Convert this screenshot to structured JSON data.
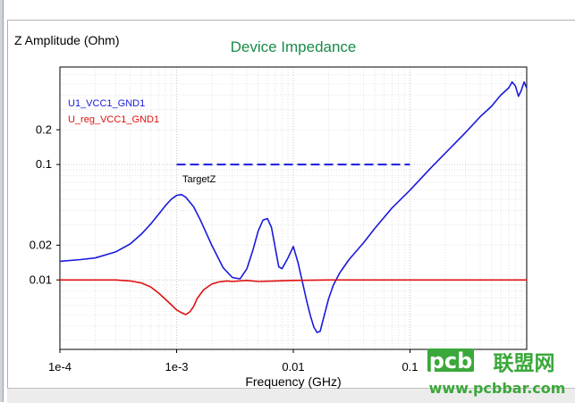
{
  "chart_data": {
    "type": "line",
    "title": "Device Impedance",
    "xlabel": "Frequency (GHz)",
    "ylabel": "Z Amplitude (Ohm)",
    "x_scale": "log",
    "y_scale": "log",
    "xlim": [
      0.0001,
      1
    ],
    "ylim": [
      0.0025,
      0.7
    ],
    "x_ticks": [
      {
        "value": 0.0001,
        "label": "1e-4"
      },
      {
        "value": 0.001,
        "label": "1e-3"
      },
      {
        "value": 0.01,
        "label": "0.01"
      },
      {
        "value": 0.1,
        "label": "0.1"
      }
    ],
    "y_ticks": [
      {
        "value": 0.2,
        "label": "0.2"
      },
      {
        "value": 0.1,
        "label": "0.1"
      },
      {
        "value": 0.02,
        "label": "0.02"
      },
      {
        "value": 0.01,
        "label": "0.01"
      }
    ],
    "grid": true,
    "legend_position": "top-left",
    "series": [
      {
        "name": "U1_VCC1_GND1",
        "color": "#1a1adc",
        "style": "solid",
        "x": [
          0.0001,
          0.00015,
          0.0002,
          0.0003,
          0.0004,
          0.0005,
          0.0006,
          0.0007,
          0.0008,
          0.0009,
          0.001,
          0.0011,
          0.0012,
          0.0014,
          0.0016,
          0.002,
          0.0025,
          0.003,
          0.0035,
          0.004,
          0.0045,
          0.005,
          0.0055,
          0.006,
          0.0065,
          0.007,
          0.0075,
          0.008,
          0.009,
          0.01,
          0.011,
          0.012,
          0.013,
          0.014,
          0.015,
          0.016,
          0.017,
          0.018,
          0.02,
          0.022,
          0.025,
          0.03,
          0.04,
          0.05,
          0.07,
          0.1,
          0.15,
          0.2,
          0.3,
          0.4,
          0.5,
          0.6,
          0.7,
          0.75,
          0.8,
          0.85,
          0.9,
          0.95,
          1.0
        ],
        "y": [
          0.0145,
          0.015,
          0.0155,
          0.0175,
          0.0205,
          0.025,
          0.0305,
          0.037,
          0.044,
          0.05,
          0.054,
          0.055,
          0.052,
          0.043,
          0.033,
          0.02,
          0.0128,
          0.0105,
          0.0102,
          0.0125,
          0.018,
          0.0265,
          0.033,
          0.034,
          0.0285,
          0.019,
          0.013,
          0.0125,
          0.0155,
          0.0195,
          0.014,
          0.0095,
          0.0066,
          0.0049,
          0.0039,
          0.0035,
          0.0036,
          0.0045,
          0.0068,
          0.009,
          0.0115,
          0.015,
          0.021,
          0.028,
          0.042,
          0.06,
          0.093,
          0.125,
          0.19,
          0.26,
          0.32,
          0.4,
          0.46,
          0.52,
          0.48,
          0.39,
          0.44,
          0.52,
          0.46
        ]
      },
      {
        "name": "U_reg_VCC1_GND1",
        "color": "#e01010",
        "style": "solid",
        "x": [
          0.0001,
          0.0002,
          0.0003,
          0.0004,
          0.0005,
          0.0006,
          0.0007,
          0.0008,
          0.0009,
          0.001,
          0.0011,
          0.0012,
          0.0013,
          0.0014,
          0.0015,
          0.0017,
          0.002,
          0.0023,
          0.0027,
          0.003,
          0.004,
          0.005,
          0.007,
          0.01,
          0.02,
          0.05,
          0.1,
          0.2,
          0.5,
          1.0
        ],
        "y": [
          0.01,
          0.01,
          0.01,
          0.0098,
          0.0094,
          0.0087,
          0.0077,
          0.0068,
          0.0061,
          0.0055,
          0.0052,
          0.005,
          0.0053,
          0.0059,
          0.0069,
          0.0082,
          0.0092,
          0.0096,
          0.0098,
          0.0097,
          0.0099,
          0.0097,
          0.0098,
          0.0099,
          0.01,
          0.01,
          0.01,
          0.01,
          0.01,
          0.01
        ]
      },
      {
        "name": "TargetZ",
        "color": "#1a1adc",
        "style": "dashed",
        "x": [
          0.001,
          0.1
        ],
        "y": [
          0.1,
          0.1
        ]
      }
    ],
    "annotations": [
      {
        "text": "TargetZ",
        "x": 0.001,
        "y": 0.1
      }
    ]
  },
  "watermark": {
    "logo": "pcb",
    "cn": "联盟网",
    "url": "www.pcbbar.com"
  }
}
